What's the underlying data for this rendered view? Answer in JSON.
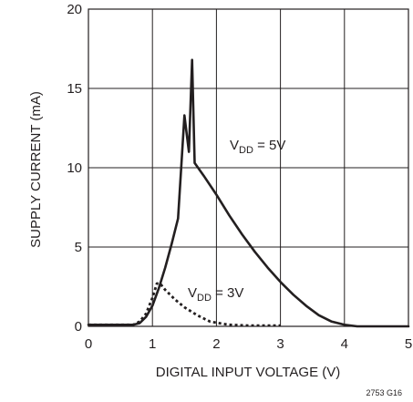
{
  "chart_data": {
    "type": "line",
    "xlabel": "DIGITAL INPUT VOLTAGE (V)",
    "ylabel": "SUPPLY CURRENT (mA)",
    "xlim": [
      0,
      5
    ],
    "ylim": [
      0,
      20
    ],
    "x_ticks": [
      "0",
      "1",
      "2",
      "3",
      "4",
      "5"
    ],
    "y_ticks": [
      "0",
      "5",
      "10",
      "15",
      "20"
    ],
    "grid": true,
    "figure_id": "2753 G16",
    "series": [
      {
        "name": "VDD = 5V",
        "label_main": "V",
        "label_sub": "DD",
        "label_rest": " = 5V",
        "style": "solid",
        "points": [
          [
            0,
            0.1
          ],
          [
            0.7,
            0.1
          ],
          [
            0.8,
            0.2
          ],
          [
            0.9,
            0.6
          ],
          [
            1.0,
            1.3
          ],
          [
            1.1,
            2.4
          ],
          [
            1.2,
            3.7
          ],
          [
            1.3,
            5.2
          ],
          [
            1.4,
            6.8
          ],
          [
            1.5,
            13.3
          ],
          [
            1.57,
            11.0
          ],
          [
            1.62,
            16.8
          ],
          [
            1.66,
            10.3
          ],
          [
            1.8,
            9.5
          ],
          [
            2.0,
            8.3
          ],
          [
            2.2,
            7.0
          ],
          [
            2.4,
            5.8
          ],
          [
            2.6,
            4.7
          ],
          [
            2.8,
            3.7
          ],
          [
            3.0,
            2.8
          ],
          [
            3.2,
            2.0
          ],
          [
            3.4,
            1.3
          ],
          [
            3.6,
            0.7
          ],
          [
            3.8,
            0.3
          ],
          [
            4.0,
            0.1
          ],
          [
            4.2,
            0.0
          ],
          [
            5,
            0.0
          ]
        ]
      },
      {
        "name": "VDD = 3V",
        "label_main": "V",
        "label_sub": "DD",
        "label_rest": " = 3V",
        "style": "dotted",
        "points": [
          [
            0,
            0.1
          ],
          [
            0.7,
            0.1
          ],
          [
            0.8,
            0.3
          ],
          [
            0.9,
            0.8
          ],
          [
            1.0,
            1.8
          ],
          [
            1.07,
            2.7
          ],
          [
            1.12,
            2.7
          ],
          [
            1.2,
            2.3
          ],
          [
            1.35,
            1.7
          ],
          [
            1.5,
            1.2
          ],
          [
            1.7,
            0.7
          ],
          [
            1.9,
            0.3
          ],
          [
            2.2,
            0.1
          ],
          [
            2.5,
            0.05
          ],
          [
            3.0,
            0.05
          ]
        ]
      }
    ]
  }
}
